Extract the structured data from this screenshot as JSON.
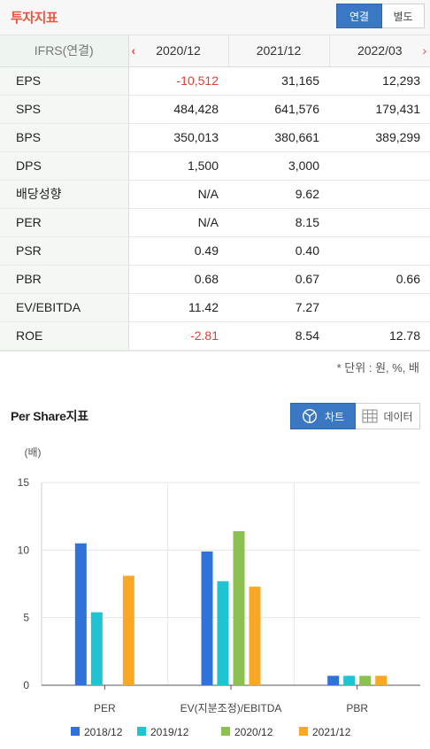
{
  "header": {
    "title": "투자지표",
    "toggle": [
      {
        "label": "연결",
        "active": true
      },
      {
        "label": "별도",
        "active": false
      }
    ]
  },
  "table": {
    "label_header": "IFRS(연결)",
    "prev_icon": "chevron-left-icon",
    "next_icon": "chevron-right-icon",
    "columns": [
      "2020/12",
      "2021/12",
      "2022/03"
    ],
    "rows": [
      {
        "label": "EPS",
        "values": [
          "-10,512",
          "31,165",
          "12,293"
        ]
      },
      {
        "label": "SPS",
        "values": [
          "484,428",
          "641,576",
          "179,431"
        ]
      },
      {
        "label": "BPS",
        "values": [
          "350,013",
          "380,661",
          "389,299"
        ]
      },
      {
        "label": "DPS",
        "values": [
          "1,500",
          "3,000",
          ""
        ]
      },
      {
        "label": "배당성향",
        "values": [
          "N/A",
          "9.62",
          ""
        ]
      },
      {
        "label": "PER",
        "values": [
          "N/A",
          "8.15",
          ""
        ]
      },
      {
        "label": "PSR",
        "values": [
          "0.49",
          "0.40",
          ""
        ]
      },
      {
        "label": "PBR",
        "values": [
          "0.68",
          "0.67",
          "0.66"
        ]
      },
      {
        "label": "EV/EBITDA",
        "values": [
          "11.42",
          "7.27",
          ""
        ]
      },
      {
        "label": "ROE",
        "values": [
          "-2.81",
          "8.54",
          "12.78"
        ]
      }
    ],
    "unit_note": "* 단위 : 원, %, 배"
  },
  "chart_section": {
    "title": "Per Share지표",
    "chart_button": {
      "label": "차트",
      "icon": "pie-chart-icon"
    },
    "data_button": {
      "label": "데이터",
      "icon": "table-grid-icon"
    }
  },
  "colors": {
    "accent": "#e8553e",
    "active_button": "#3a78c3",
    "negative": "#e33b2e",
    "series": [
      "#2f73d8",
      "#1fc3d2",
      "#8cc152",
      "#f9a825"
    ]
  },
  "chart_data": {
    "type": "bar",
    "ylabel": "(배)",
    "ylim": [
      0,
      15
    ],
    "yticks": [
      0,
      5,
      10,
      15
    ],
    "categories": [
      "PER",
      "EV(지분조정)/EBITDA",
      "PBR"
    ],
    "series": [
      {
        "name": "2018/12",
        "color": "#2f73d8",
        "values": [
          10.5,
          9.9,
          0.7
        ]
      },
      {
        "name": "2019/12",
        "color": "#1fc3d2",
        "values": [
          5.4,
          7.7,
          0.7
        ]
      },
      {
        "name": "2020/12",
        "color": "#8cc152",
        "values": [
          null,
          11.4,
          0.7
        ]
      },
      {
        "name": "2021/12",
        "color": "#f9a825",
        "values": [
          8.1,
          7.3,
          0.7
        ]
      }
    ],
    "grid": true,
    "legend_position": "bottom"
  }
}
